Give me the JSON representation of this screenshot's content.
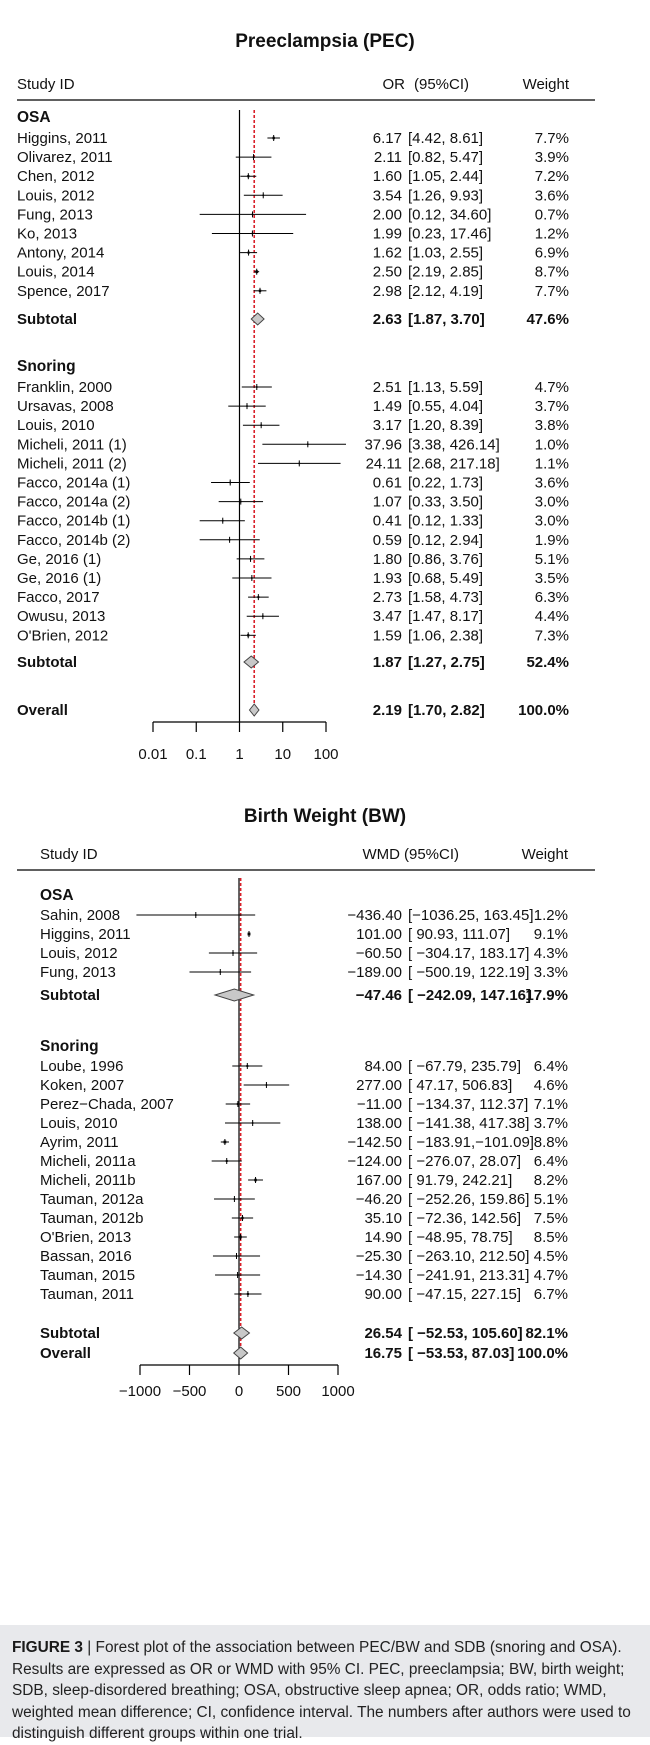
{
  "chart_data": [
    {
      "type": "forest",
      "title": "Preeclampsia (PEC)",
      "headers": {
        "study": "Study ID",
        "effect": "OR",
        "ci": "(95%CI)",
        "weight": "Weight"
      },
      "scale": "log",
      "xlim": [
        0.01,
        100
      ],
      "ticks": [
        0.01,
        0.1,
        1,
        10,
        100
      ],
      "tick_labels": [
        "0.01",
        "0.1",
        "1",
        "10",
        "100"
      ],
      "null_value": 1,
      "overall_line": 2.19,
      "groups": [
        {
          "name": "OSA",
          "studies": [
            {
              "label": "Higgins, 2011",
              "est": 6.17,
              "lo": 4.42,
              "hi": 8.61,
              "est_text": "6.17",
              "ci_text": "[4.42, 8.61]",
              "weight": "7.7%"
            },
            {
              "label": "Olivarez, 2011",
              "est": 2.11,
              "lo": 0.82,
              "hi": 5.47,
              "est_text": "2.11",
              "ci_text": "[0.82, 5.47]",
              "weight": "3.9%"
            },
            {
              "label": "Chen, 2012",
              "est": 1.6,
              "lo": 1.05,
              "hi": 2.44,
              "est_text": "1.60",
              "ci_text": "[1.05, 2.44]",
              "weight": "7.2%"
            },
            {
              "label": "Louis, 2012",
              "est": 3.54,
              "lo": 1.26,
              "hi": 9.93,
              "est_text": "3.54",
              "ci_text": "[1.26, 9.93]",
              "weight": "3.6%"
            },
            {
              "label": "Fung, 2013",
              "est": 2.0,
              "lo": 0.12,
              "hi": 34.6,
              "est_text": "2.00",
              "ci_text": "[0.12, 34.60]",
              "weight": "0.7%"
            },
            {
              "label": "Ko, 2013",
              "est": 1.99,
              "lo": 0.23,
              "hi": 17.46,
              "est_text": "1.99",
              "ci_text": "[0.23, 17.46]",
              "weight": "1.2%"
            },
            {
              "label": "Antony, 2014",
              "est": 1.62,
              "lo": 1.03,
              "hi": 2.55,
              "est_text": "1.62",
              "ci_text": "[1.03, 2.55]",
              "weight": "6.9%"
            },
            {
              "label": "Louis, 2014",
              "est": 2.5,
              "lo": 2.19,
              "hi": 2.85,
              "est_text": "2.50",
              "ci_text": "[2.19, 2.85]",
              "weight": "8.7%"
            },
            {
              "label": "Spence, 2017",
              "est": 2.98,
              "lo": 2.12,
              "hi": 4.19,
              "est_text": "2.98",
              "ci_text": "[2.12, 4.19]",
              "weight": "7.7%"
            }
          ],
          "subtotal": {
            "label": "Subtotal",
            "est": 2.63,
            "lo": 1.87,
            "hi": 3.7,
            "est_text": "2.63",
            "ci_text": "[1.87, 3.70]",
            "weight": "47.6%"
          }
        },
        {
          "name": "Snoring",
          "studies": [
            {
              "label": "Franklin, 2000",
              "est": 2.51,
              "lo": 1.13,
              "hi": 5.59,
              "est_text": "2.51",
              "ci_text": "[1.13, 5.59]",
              "weight": "4.7%"
            },
            {
              "label": "Ursavas, 2008",
              "est": 1.49,
              "lo": 0.55,
              "hi": 4.04,
              "est_text": "1.49",
              "ci_text": "[0.55, 4.04]",
              "weight": "3.7%"
            },
            {
              "label": "Louis, 2010",
              "est": 3.17,
              "lo": 1.2,
              "hi": 8.39,
              "est_text": "3.17",
              "ci_text": "[1.20, 8.39]",
              "weight": "3.8%"
            },
            {
              "label": "Micheli, 2011 (1)",
              "est": 37.96,
              "lo": 3.38,
              "hi": 426.14,
              "est_text": "37.96",
              "ci_text": "[3.38, 426.14]",
              "weight": "1.0%"
            },
            {
              "label": "Micheli, 2011 (2)",
              "est": 24.11,
              "lo": 2.68,
              "hi": 217.18,
              "est_text": "24.11",
              "ci_text": "[2.68, 217.18]",
              "weight": "1.1%"
            },
            {
              "label": "Facco, 2014a (1)",
              "est": 0.61,
              "lo": 0.22,
              "hi": 1.73,
              "est_text": "0.61",
              "ci_text": "[0.22, 1.73]",
              "weight": "3.6%"
            },
            {
              "label": "Facco, 2014a (2)",
              "est": 1.07,
              "lo": 0.33,
              "hi": 3.5,
              "est_text": "1.07",
              "ci_text": "[0.33, 3.50]",
              "weight": "3.0%"
            },
            {
              "label": "Facco, 2014b (1)",
              "est": 0.41,
              "lo": 0.12,
              "hi": 1.33,
              "est_text": "0.41",
              "ci_text": "[0.12, 1.33]",
              "weight": "3.0%"
            },
            {
              "label": "Facco, 2014b (2)",
              "est": 0.59,
              "lo": 0.12,
              "hi": 2.94,
              "est_text": "0.59",
              "ci_text": "[0.12, 2.94]",
              "weight": "1.9%"
            },
            {
              "label": "Ge, 2016 (1)",
              "est": 1.8,
              "lo": 0.86,
              "hi": 3.76,
              "est_text": "1.80",
              "ci_text": "[0.86, 3.76]",
              "weight": "5.1%"
            },
            {
              "label": "Ge, 2016 (1)",
              "est": 1.93,
              "lo": 0.68,
              "hi": 5.49,
              "est_text": "1.93",
              "ci_text": "[0.68, 5.49]",
              "weight": "3.5%"
            },
            {
              "label": "Facco, 2017",
              "est": 2.73,
              "lo": 1.58,
              "hi": 4.73,
              "est_text": "2.73",
              "ci_text": "[1.58, 4.73]",
              "weight": "6.3%"
            },
            {
              "label": "Owusu, 2013",
              "est": 3.47,
              "lo": 1.47,
              "hi": 8.17,
              "est_text": "3.47",
              "ci_text": "[1.47, 8.17]",
              "weight": "4.4%"
            },
            {
              "label": "O'Brien, 2012",
              "est": 1.59,
              "lo": 1.06,
              "hi": 2.38,
              "est_text": "1.59",
              "ci_text": "[1.06, 2.38]",
              "weight": "7.3%"
            }
          ],
          "subtotal": {
            "label": "Subtotal",
            "est": 1.87,
            "lo": 1.27,
            "hi": 2.75,
            "est_text": "1.87",
            "ci_text": "[1.27, 2.75]",
            "weight": "52.4%"
          }
        }
      ],
      "overall": {
        "label": "Overall",
        "est": 2.19,
        "lo": 1.7,
        "hi": 2.82,
        "est_text": "2.19",
        "ci_text": "[1.70, 2.82]",
        "weight": "100.0%"
      }
    },
    {
      "type": "forest",
      "title": "Birth Weight (BW)",
      "headers": {
        "study": "Study ID",
        "effect": "WMD",
        "ci": "(95%CI)",
        "weight": "Weight"
      },
      "scale": "linear",
      "xlim": [
        -1000,
        1000
      ],
      "ticks": [
        -1000,
        -500,
        0,
        500,
        1000
      ],
      "tick_labels": [
        "−1000",
        "−500",
        "0",
        "500",
        "1000"
      ],
      "null_value": 0,
      "overall_line": 16.75,
      "groups": [
        {
          "name": "OSA",
          "studies": [
            {
              "label": "Sahin, 2008",
              "est": -436.4,
              "lo": -1036.25,
              "hi": 163.45,
              "est_text": "−436.40",
              "ci_text": "[−1036.25, 163.45]",
              "weight": "1.2%"
            },
            {
              "label": "Higgins, 2011",
              "est": 101.0,
              "lo": 90.93,
              "hi": 111.07,
              "est_text": "101.00",
              "ci_text": "[ 90.93, 111.07]",
              "weight": "9.1%"
            },
            {
              "label": "Louis, 2012",
              "est": -60.5,
              "lo": -304.17,
              "hi": 183.17,
              "est_text": "−60.50",
              "ci_text": "[ −304.17, 183.17]",
              "weight": "4.3%"
            },
            {
              "label": "Fung, 2013",
              "est": -189.0,
              "lo": -500.19,
              "hi": 122.19,
              "est_text": "−189.00",
              "ci_text": "[ −500.19, 122.19]",
              "weight": "3.3%"
            }
          ],
          "subtotal": {
            "label": "Subtotal",
            "est": -47.46,
            "lo": -242.09,
            "hi": 147.16,
            "est_text": "−47.46",
            "ci_text": "[ −242.09, 147.16]",
            "weight": "17.9%"
          }
        },
        {
          "name": "Snoring",
          "studies": [
            {
              "label": "Loube, 1996",
              "est": 84.0,
              "lo": -67.79,
              "hi": 235.79,
              "est_text": "84.00",
              "ci_text": "[  −67.79, 235.79]",
              "weight": "6.4%"
            },
            {
              "label": "Koken, 2007",
              "est": 277.0,
              "lo": 47.17,
              "hi": 506.83,
              "est_text": "277.00",
              "ci_text": "[  47.17, 506.83]",
              "weight": "4.6%"
            },
            {
              "label": "Perez−Chada, 2007",
              "est": -11.0,
              "lo": -134.37,
              "hi": 112.37,
              "est_text": "−11.00",
              "ci_text": "[ −134.37, 112.37]",
              "weight": "7.1%"
            },
            {
              "label": "Louis, 2010",
              "est": 138.0,
              "lo": -141.38,
              "hi": 417.38,
              "est_text": "138.00",
              "ci_text": "[ −141.38, 417.38]",
              "weight": "3.7%"
            },
            {
              "label": "Ayrim, 2011",
              "est": -142.5,
              "lo": -183.91,
              "hi": -101.09,
              "est_text": "−142.50",
              "ci_text": "[ −183.91,−101.09]",
              "weight": "8.8%"
            },
            {
              "label": "Micheli, 2011a",
              "est": -124.0,
              "lo": -276.07,
              "hi": 28.07,
              "est_text": "−124.00",
              "ci_text": "[ −276.07, 28.07]",
              "weight": "6.4%"
            },
            {
              "label": "Micheli, 2011b",
              "est": 167.0,
              "lo": 91.79,
              "hi": 242.21,
              "est_text": "167.00",
              "ci_text": "[ 91.79, 242.21]",
              "weight": "8.2%"
            },
            {
              "label": "Tauman, 2012a",
              "est": -46.2,
              "lo": -252.26,
              "hi": 159.86,
              "est_text": "−46.20",
              "ci_text": "[ −252.26, 159.86]",
              "weight": "5.1%"
            },
            {
              "label": "Tauman, 2012b",
              "est": 35.1,
              "lo": -72.36,
              "hi": 142.56,
              "est_text": "35.10",
              "ci_text": "[  −72.36, 142.56]",
              "weight": "7.5%"
            },
            {
              "label": "O'Brien, 2013",
              "est": 14.9,
              "lo": -48.95,
              "hi": 78.75,
              "est_text": "14.90",
              "ci_text": "[  −48.95, 78.75]",
              "weight": "8.5%"
            },
            {
              "label": "Bassan, 2016",
              "est": -25.3,
              "lo": -263.1,
              "hi": 212.5,
              "est_text": "−25.30",
              "ci_text": "[ −263.10, 212.50]",
              "weight": "4.5%"
            },
            {
              "label": "Tauman, 2015",
              "est": -14.3,
              "lo": -241.91,
              "hi": 213.31,
              "est_text": "−14.30",
              "ci_text": "[ −241.91, 213.31]",
              "weight": "4.7%"
            },
            {
              "label": "Tauman, 2011",
              "est": 90.0,
              "lo": -47.15,
              "hi": 227.15,
              "est_text": "90.00",
              "ci_text": "[  −47.15, 227.15]",
              "weight": "6.7%"
            }
          ],
          "subtotal": {
            "label": "Subtotal",
            "est": 26.54,
            "lo": -52.53,
            "hi": 105.6,
            "est_text": "26.54",
            "ci_text": "[  −52.53, 105.60]",
            "weight": "82.1%"
          }
        }
      ],
      "overall": {
        "label": "Overall",
        "est": 16.75,
        "lo": -53.53,
        "hi": 87.03,
        "est_text": "16.75",
        "ci_text": "[  −53.53, 87.03]",
        "weight": "100.0%"
      }
    }
  ],
  "caption": {
    "label": "FIGURE 3",
    "separator": " | ",
    "text": "Forest plot of the association between PEC/BW and SDB (snoring and OSA). Results are expressed as OR or WMD with 95% CI. PEC, preeclampsia; BW, birth weight; SDB, sleep-disordered breathing; OSA, obstructive sleep apnea; OR, odds ratio; WMD, weighted mean difference; CI, confidence interval. The numbers after authors were used to distinguish different groups within one trial."
  },
  "colors": {
    "overall_line": "#d9202a",
    "diamond_fill": "#c8c8c8",
    "axis": "#000000",
    "caption_bg": "#e8e9ec"
  }
}
